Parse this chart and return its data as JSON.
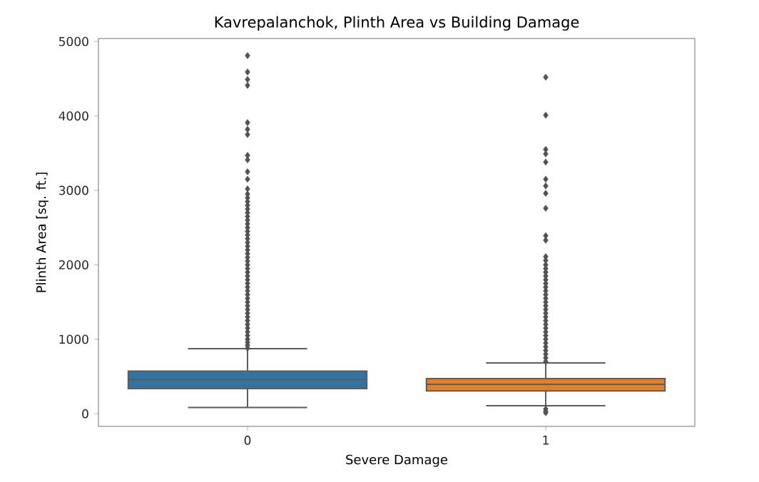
{
  "chart_data": {
    "type": "box",
    "title": "Kavrepalanchok, Plinth Area vs Building Damage",
    "xlabel": "Severe Damage",
    "ylabel": "Plinth Area [sq. ft.]",
    "categories": [
      "0",
      "1"
    ],
    "colors": [
      "#3274a1",
      "#e1812c"
    ],
    "boxes": [
      {
        "low": 83,
        "q1": 338,
        "median": 459,
        "q3": 573,
        "high": 873,
        "outliers": [
          880,
          920,
          960,
          1000,
          1050,
          1100,
          1150,
          1200,
          1250,
          1300,
          1350,
          1400,
          1450,
          1500,
          1550,
          1600,
          1650,
          1700,
          1750,
          1800,
          1850,
          1900,
          1950,
          2000,
          2050,
          2100,
          2150,
          2200,
          2250,
          2300,
          2350,
          2400,
          2450,
          2500,
          2550,
          2600,
          2650,
          2700,
          2750,
          2800,
          2850,
          2900,
          2950,
          3020,
          3150,
          3250,
          3410,
          3470,
          3750,
          3820,
          3910,
          4410,
          4490,
          4590,
          4810
        ]
      },
      {
        "low": 108,
        "q1": 306,
        "median": 395,
        "q3": 471,
        "high": 682,
        "outliers": [
          13,
          32,
          64,
          700,
          750,
          800,
          850,
          900,
          950,
          1000,
          1050,
          1100,
          1150,
          1200,
          1250,
          1300,
          1350,
          1400,
          1450,
          1500,
          1550,
          1600,
          1650,
          1700,
          1750,
          1800,
          1850,
          1900,
          1950,
          2000,
          2060,
          2110,
          2330,
          2390,
          2760,
          2960,
          3060,
          3150,
          3380,
          3490,
          3550,
          4010,
          4520
        ]
      }
    ],
    "ylim": [
      -170,
      5040
    ],
    "yticks": [
      0,
      1000,
      2000,
      3000,
      4000,
      5000
    ],
    "marker": "diamond",
    "grid": false
  }
}
